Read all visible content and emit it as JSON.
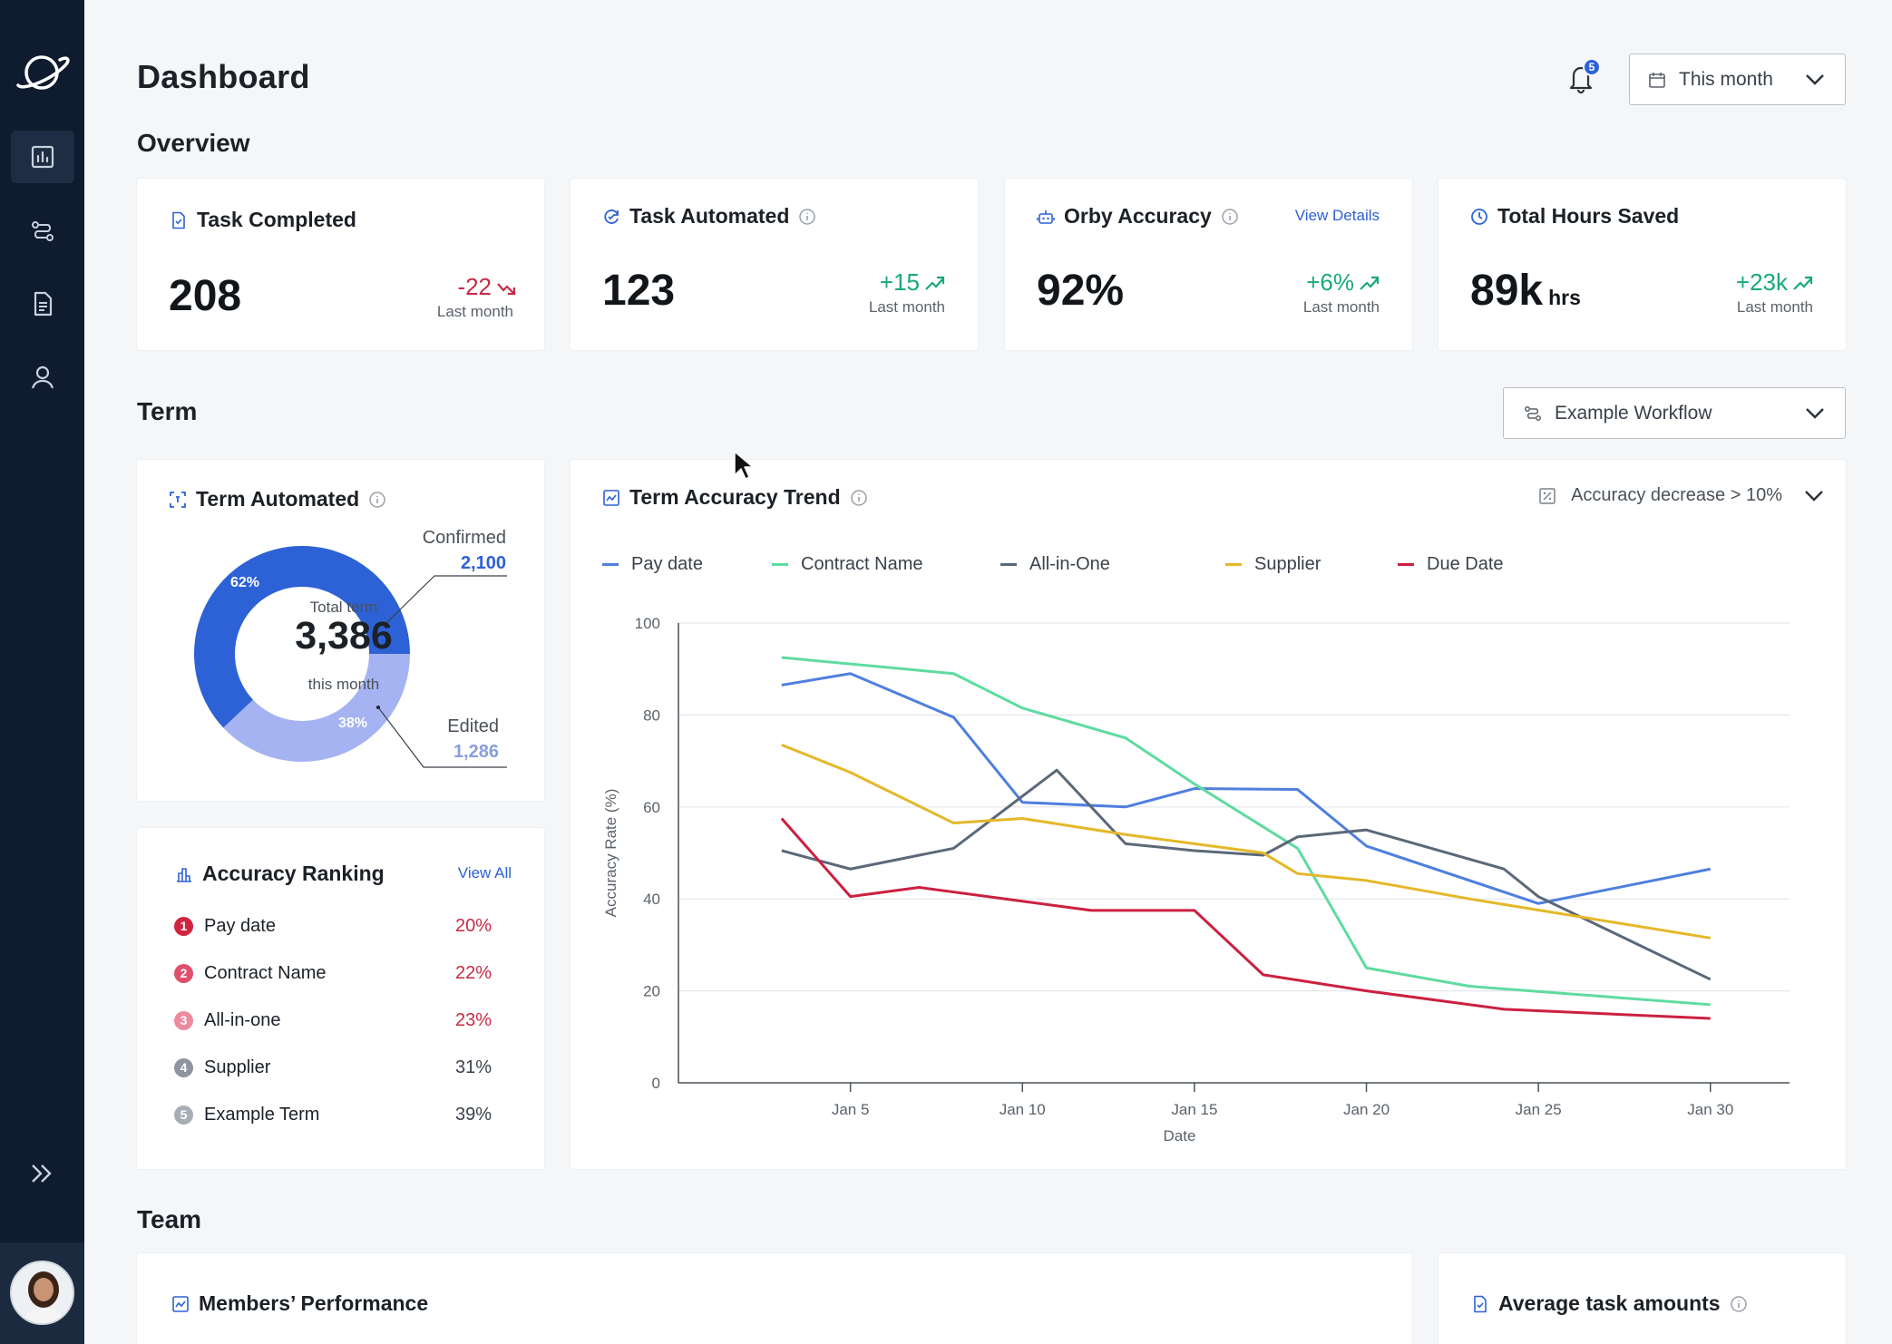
{
  "header": {
    "title": "Dashboard",
    "notification_count": "5",
    "period": "This month"
  },
  "sidebar": {
    "items": [
      {
        "name": "dashboard",
        "icon": "bar-chart-icon",
        "active": true
      },
      {
        "name": "workflows",
        "icon": "workflow-icon",
        "active": false
      },
      {
        "name": "documents",
        "icon": "document-icon",
        "active": false
      },
      {
        "name": "users",
        "icon": "user-icon",
        "active": false
      }
    ]
  },
  "overview": {
    "title": "Overview",
    "cards": [
      {
        "title": "Task Completed",
        "value": "208",
        "unit": "",
        "delta": "-22",
        "delta_sub": "Last month",
        "trend": "down",
        "info": false
      },
      {
        "title": "Task Automated",
        "value": "123",
        "unit": "",
        "delta": "+15",
        "delta_sub": "Last month",
        "trend": "up",
        "info": true
      },
      {
        "title": "Orby Accuracy",
        "value": "92%",
        "unit": "",
        "delta": "+6%",
        "delta_sub": "Last month",
        "trend": "up",
        "info": true,
        "link": "View Details"
      },
      {
        "title": "Total Hours Saved",
        "value": "89k",
        "unit": "hrs",
        "delta": "+23k",
        "delta_sub": "Last month",
        "trend": "up",
        "info": false
      }
    ]
  },
  "term": {
    "title": "Term",
    "workflow_select": "Example Workflow",
    "automated": {
      "title": "Term Automated",
      "center_label": "Total term",
      "center_value": "3,386",
      "center_sub": "this month",
      "confirmed_label": "Confirmed",
      "confirmed_value": "2,100",
      "confirmed_pct": "62%",
      "edited_label": "Edited",
      "edited_value": "1,286",
      "edited_pct": "38%",
      "confirmed_fraction": 0.62
    },
    "ranking": {
      "title": "Accuracy Ranking",
      "link": "View All",
      "items": [
        {
          "rank": "1",
          "name": "Pay date",
          "value": "20%",
          "color": "#d0253f",
          "value_color": "#c72a45"
        },
        {
          "rank": "2",
          "name": "Contract Name",
          "value": "22%",
          "color": "#e0506a",
          "value_color": "#c72a45"
        },
        {
          "rank": "3",
          "name": "All-in-one",
          "value": "23%",
          "color": "#ee8aa0",
          "value_color": "#c72a45"
        },
        {
          "rank": "4",
          "name": "Supplier",
          "value": "31%",
          "color": "#8e959e",
          "value_color": "#3a414b"
        },
        {
          "rank": "5",
          "name": "Example Term",
          "value": "39%",
          "color": "#a7adb5",
          "value_color": "#3a414b"
        }
      ]
    },
    "trend": {
      "title": "Term Accuracy Trend",
      "filter": "Accuracy decrease > 10%"
    }
  },
  "team": {
    "title": "Team",
    "members_title": "Members’ Performance",
    "avg_title": "Average task amounts"
  },
  "chart_data": {
    "type": "line",
    "title": "Term Accuracy Trend",
    "xlabel": "Date",
    "ylabel": "Accuracy Rate (%)",
    "ylim": [
      0,
      100
    ],
    "yticks": [
      0,
      20,
      40,
      60,
      80,
      100
    ],
    "xticks": [
      "Jan 5",
      "Jan 10",
      "Jan 15",
      "Jan 20",
      "Jan 25",
      "Jan 30"
    ],
    "x": [
      3,
      5,
      8,
      10,
      11,
      13,
      15,
      16,
      18,
      19,
      20,
      22,
      24,
      25,
      28,
      30
    ],
    "legend_position": "top-left",
    "series": [
      {
        "name": "Pay date",
        "color": "#4f7fdf",
        "points": [
          [
            3,
            86.5
          ],
          [
            5,
            89
          ],
          [
            8,
            79.5
          ],
          [
            10,
            61
          ],
          [
            13,
            60
          ],
          [
            15,
            64
          ],
          [
            18,
            63.8
          ],
          [
            20,
            51.5
          ],
          [
            25,
            39
          ],
          [
            30,
            46.5
          ]
        ]
      },
      {
        "name": "Contract Name",
        "color": "#5fdba0",
        "points": [
          [
            3,
            92.5
          ],
          [
            8,
            89
          ],
          [
            10,
            81.5
          ],
          [
            13,
            75
          ],
          [
            15,
            65
          ],
          [
            18,
            51
          ],
          [
            20,
            25
          ],
          [
            23,
            21
          ],
          [
            30,
            17
          ]
        ]
      },
      {
        "name": "All-in-One",
        "color": "#5b6878",
        "points": [
          [
            3,
            50.5
          ],
          [
            5,
            46.5
          ],
          [
            8,
            51
          ],
          [
            11,
            68
          ],
          [
            13,
            52
          ],
          [
            15,
            50.5
          ],
          [
            17,
            49.5
          ],
          [
            18,
            53.5
          ],
          [
            20,
            55
          ],
          [
            24,
            46.5
          ],
          [
            25,
            40.5
          ],
          [
            30,
            22.5
          ]
        ]
      },
      {
        "name": "Supplier",
        "color": "#e4b829",
        "points": [
          [
            3,
            73.5
          ],
          [
            5,
            67.5
          ],
          [
            8,
            56.5
          ],
          [
            10,
            57.5
          ],
          [
            13,
            54
          ],
          [
            17,
            50
          ],
          [
            18,
            45.5
          ],
          [
            20,
            44
          ],
          [
            23,
            40
          ],
          [
            30,
            31.5
          ]
        ]
      },
      {
        "name": "Due Date",
        "color": "#cc2040",
        "points": [
          [
            3,
            57.5
          ],
          [
            5,
            40.5
          ],
          [
            7,
            42.5
          ],
          [
            10,
            39.5
          ],
          [
            12,
            37.5
          ],
          [
            15,
            37.5
          ],
          [
            17,
            23.5
          ],
          [
            20,
            20
          ],
          [
            24,
            16
          ],
          [
            30,
            14
          ]
        ]
      }
    ]
  }
}
